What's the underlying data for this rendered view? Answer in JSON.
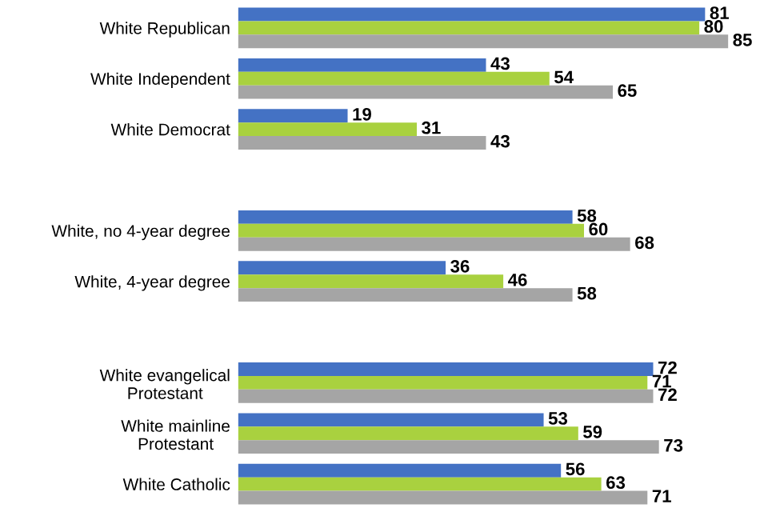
{
  "chart_data": {
    "type": "bar",
    "orientation": "horizontal",
    "categories": [
      "White Republican",
      "White Independent",
      "White Democrat",
      null,
      "White, no 4-year degree",
      "White, 4-year degree",
      null,
      "White evangelical\nProtestant",
      "White mainline\nProtestant",
      "White Catholic"
    ],
    "series": [
      {
        "color": "#4472c4",
        "values": [
          81,
          43,
          19,
          null,
          58,
          36,
          null,
          72,
          53,
          56
        ]
      },
      {
        "color": "#a9d13f",
        "values": [
          80,
          54,
          31,
          null,
          60,
          46,
          null,
          71,
          59,
          63
        ]
      },
      {
        "color": "#a5a5a5",
        "values": [
          85,
          65,
          43,
          null,
          68,
          58,
          null,
          72,
          73,
          71
        ]
      }
    ],
    "tick_labels": "y",
    "data_labels": true,
    "grid": false,
    "legend": false
  }
}
